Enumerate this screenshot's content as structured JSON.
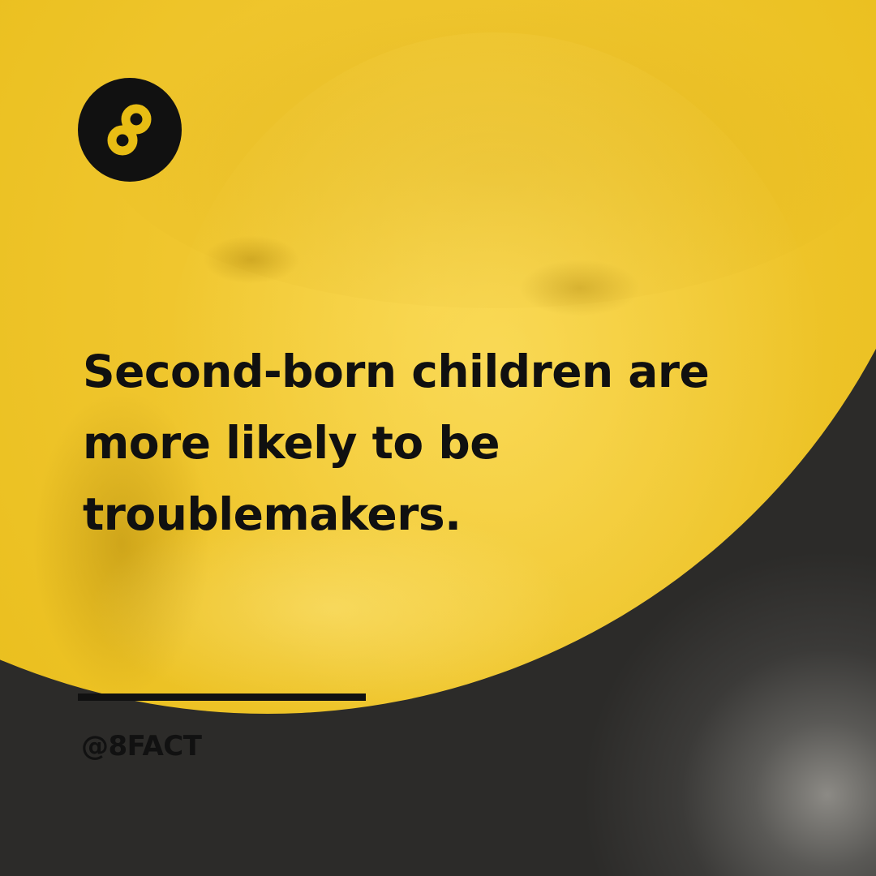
{
  "post": {
    "headline_lines": [
      "Second-born children are",
      "more likely to be",
      "troublemakers."
    ],
    "handle": "@8FACT"
  },
  "brand": {
    "logo_icon": "infinity-eight-icon",
    "accent_color": "#e8bd14",
    "logo_background": "#111111",
    "text_color": "#101010"
  }
}
